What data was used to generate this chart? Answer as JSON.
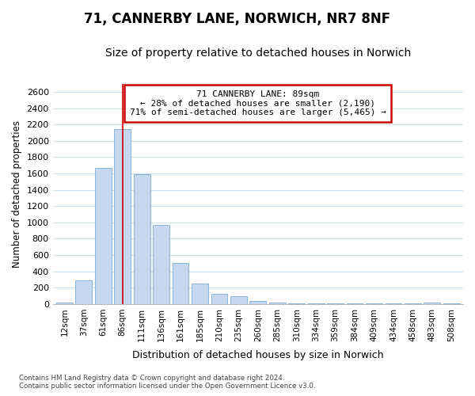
{
  "title": "71, CANNERBY LANE, NORWICH, NR7 8NF",
  "subtitle": "Size of property relative to detached houses in Norwich",
  "xlabel": "Distribution of detached houses by size in Norwich",
  "ylabel": "Number of detached properties",
  "categories": [
    "12sqm",
    "37sqm",
    "61sqm",
    "86sqm",
    "111sqm",
    "136sqm",
    "161sqm",
    "185sqm",
    "210sqm",
    "235sqm",
    "260sqm",
    "285sqm",
    "310sqm",
    "334sqm",
    "359sqm",
    "384sqm",
    "409sqm",
    "434sqm",
    "458sqm",
    "483sqm",
    "508sqm"
  ],
  "values": [
    20,
    295,
    1670,
    2140,
    1590,
    970,
    500,
    250,
    125,
    100,
    40,
    20,
    10,
    8,
    6,
    4,
    4,
    4,
    4,
    20,
    4
  ],
  "bar_color": "#c5d8f0",
  "bar_edge_color": "#7aadd4",
  "ylim": [
    0,
    2700
  ],
  "yticks": [
    0,
    200,
    400,
    600,
    800,
    1000,
    1200,
    1400,
    1600,
    1800,
    2000,
    2200,
    2400,
    2600
  ],
  "annotation_box_text": "71 CANNERBY LANE: 89sqm\n← 28% of detached houses are smaller (2,190)\n71% of semi-detached houses are larger (5,465) →",
  "annotation_box_color": "#ffffff",
  "annotation_box_edge_color": "#cc0000",
  "property_bar_index": 3,
  "property_bar_color": "#cc0000",
  "background_color": "#ffffff",
  "plot_bg_color": "#ffffff",
  "grid_color": "#d0dff0",
  "footnote": "Contains HM Land Registry data © Crown copyright and database right 2024.\nContains public sector information licensed under the Open Government Licence v3.0.",
  "title_fontsize": 12,
  "subtitle_fontsize": 10
}
